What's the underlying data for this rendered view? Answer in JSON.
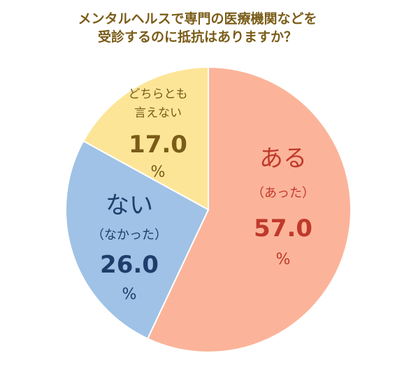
{
  "chart_data": {
    "type": "pie",
    "title_lines": [
      "メンタルヘルスで専門の医療機関などを",
      "受診するのに抵抗はありますか？"
    ],
    "unit": "%",
    "slices": [
      {
        "label": "ある",
        "sublabel": "（あった）",
        "value": 57.0,
        "display_value": "57.0",
        "color": "#fbb49a",
        "text_color": "#c0392b"
      },
      {
        "label": "ない",
        "sublabel": "（なかった）",
        "value": 26.0,
        "display_value": "26.0",
        "color": "#9fc2e6",
        "text_color": "#1f3e6b"
      },
      {
        "label_lines": [
          "どちらとも",
          "言えない"
        ],
        "value": 17.0,
        "display_value": "17.0",
        "color": "#fde598",
        "text_color": "#7a5c18"
      }
    ]
  }
}
